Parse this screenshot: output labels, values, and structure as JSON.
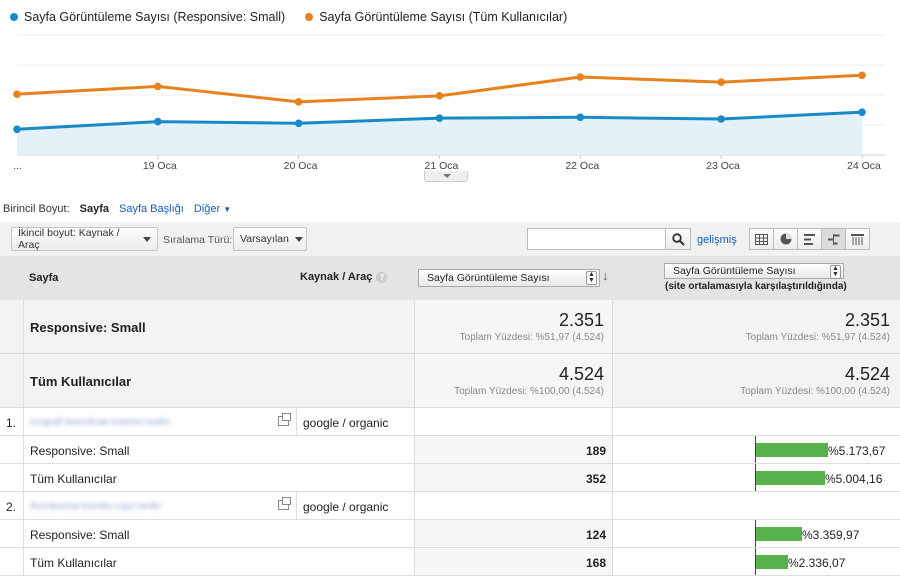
{
  "chart": {
    "legend": [
      {
        "label": "Sayfa Görüntüleme Sayısı (Responsive: Small)",
        "color": "#1a8ac6"
      },
      {
        "label": "Sayfa Görüntüleme Sayısı (Tüm Kullanıcılar)",
        "color": "#e8821e"
      }
    ],
    "x_labels": [
      "...",
      "19 Oca",
      "20 Oca",
      "21 Oca",
      "22 Oca",
      "23 Oca",
      "24 Oca"
    ]
  },
  "chart_data": {
    "type": "line",
    "title": "",
    "x": [
      "...",
      "19 Oca",
      "20 Oca",
      "21 Oca",
      "22 Oca",
      "23 Oca",
      "24 Oca"
    ],
    "series": [
      {
        "name": "Sayfa Görüntüleme Sayısı (Responsive: Small)",
        "values": [
          30,
          39,
          37,
          43,
          44,
          42,
          50
        ]
      },
      {
        "name": "Sayfa Görüntüleme Sayısı (Tüm Kullanıcılar)",
        "values": [
          71,
          80,
          62,
          69,
          91,
          85,
          93
        ]
      }
    ],
    "ylim": [
      0,
      140
    ],
    "grid": true,
    "area_fill_series": 0
  },
  "dimensions": {
    "label": "Birincil Boyut:",
    "active": "Sayfa",
    "option1": "Sayfa Başlığı",
    "option2": "Diğer"
  },
  "toolbar": {
    "secondary_dim": "İkincil boyut: Kaynak / Araç",
    "sort_label": "Sıralama Türü:",
    "sort_value": "Varsayılan",
    "search_value": "",
    "advanced": "gelişmiş"
  },
  "table_header": {
    "page": "Sayfa",
    "source": "Kaynak / Araç",
    "metric": "Sayfa Görüntüleme Sayısı",
    "compare_metric": "Sayfa Görüntüleme Sayısı",
    "compare_note": "(site ortalamasıyla karşılaştırıldığında)"
  },
  "summary": [
    {
      "title": "Responsive: Small",
      "value": "2.351",
      "pct": "Toplam Yüzdesi: %51,97 (4.524)"
    },
    {
      "title": "Tüm Kullanıcılar",
      "value": "4.524",
      "pct": "Toplam Yüzdesi: %100,00 (4.524)"
    }
  ],
  "rows": [
    {
      "index": "1.",
      "page": "/cografi-koordinat-sistemi-nedir/",
      "source": "google / organic",
      "subs": [
        {
          "label": "Responsive: Small",
          "value": "189",
          "compare": "%5.173,67",
          "bar_fraction": 0.72
        },
        {
          "label": "Tüm Kullanıcılar",
          "value": "352",
          "compare": "%5.004,16",
          "bar_fraction": 0.69
        }
      ]
    },
    {
      "index": "2.",
      "page": "/kombucha-kombu-cayi-nedir/",
      "source": "google / organic",
      "subs": [
        {
          "label": "Responsive: Small",
          "value": "124",
          "compare": "%3.359,97",
          "bar_fraction": 0.46
        },
        {
          "label": "Tüm Kullanıcılar",
          "value": "168",
          "compare": "%2.336,07",
          "bar_fraction": 0.32
        }
      ]
    }
  ]
}
